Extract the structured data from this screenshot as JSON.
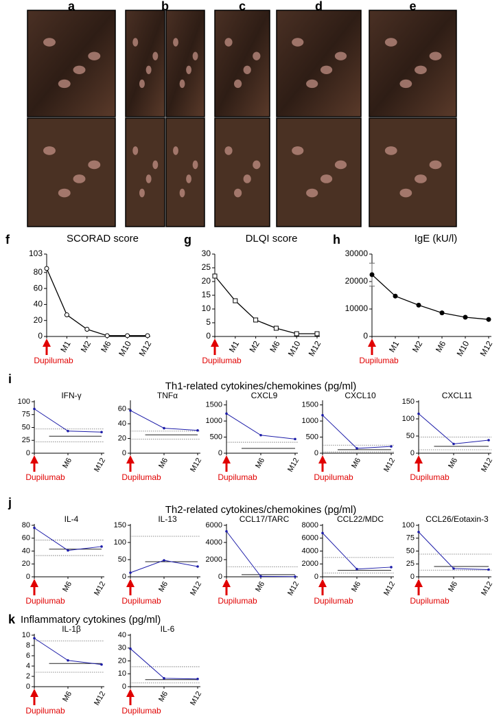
{
  "photo_panels": [
    "a",
    "b",
    "c",
    "d",
    "e"
  ],
  "groups": [
    {
      "label": "i",
      "title": "Th1-related cytokines/chemokines (pg/ml)"
    },
    {
      "label": "j",
      "title": "Th2-related cytokines/chemokines (pg/ml)"
    },
    {
      "label": "k",
      "title": "Inflammatory cytokines (pg/ml)"
    }
  ],
  "chart_data": [
    {
      "type": "line",
      "label": "f",
      "title": "SCORAD score",
      "categories": [
        null,
        "M1",
        "M2",
        "M6",
        "M10",
        "M12"
      ],
      "annotation": "Dupilumab",
      "ylim": [
        0,
        103
      ],
      "yticks": [
        0,
        20,
        40,
        60,
        80,
        103
      ],
      "series": [
        {
          "color": "#000000",
          "marker": "open-circle",
          "values": [
            85,
            27,
            9,
            1,
            1,
            1
          ]
        }
      ]
    },
    {
      "type": "line",
      "label": "g",
      "title": "DLQI score",
      "categories": [
        null,
        "M1",
        "M2",
        "M6",
        "M10",
        "M12"
      ],
      "annotation": "Dupilumab",
      "ylim": [
        0,
        30
      ],
      "yticks": [
        0,
        5,
        10,
        15,
        20,
        25,
        30
      ],
      "series": [
        {
          "color": "#000000",
          "marker": "open-square",
          "values": [
            22,
            13,
            6,
            3,
            1,
            1
          ]
        }
      ]
    },
    {
      "type": "line",
      "label": "h",
      "title": "IgE (kU/l)",
      "categories": [
        null,
        "M1",
        "M2",
        "M6",
        "M10",
        "M12"
      ],
      "annotation": "Dupilumab",
      "ylim": [
        0,
        30000
      ],
      "yticks": [
        0,
        10000,
        20000,
        30000
      ],
      "series": [
        {
          "color": "#000000",
          "marker": "dot",
          "values": [
            22500,
            14700,
            11400,
            8600,
            7000,
            6200
          ],
          "errors": [
            4200,
            null,
            null,
            null,
            null,
            null
          ]
        }
      ]
    },
    {
      "type": "line",
      "title": "IFN-γ",
      "categories": [
        null,
        "M6",
        "M12"
      ],
      "annotation": "Dupilumab",
      "ylim": [
        0,
        100
      ],
      "yticks": [
        0,
        25,
        50,
        75,
        100
      ],
      "series": [
        {
          "color": "#1c1ca8",
          "marker": "dot",
          "values": [
            86,
            43,
            41
          ]
        }
      ],
      "reference": {
        "mean": 33,
        "bounds": [
          47,
          22
        ]
      }
    },
    {
      "type": "line",
      "title": "TNFα",
      "categories": [
        null,
        "M6",
        "M12"
      ],
      "annotation": "Dupilumab",
      "ylim": [
        0,
        70
      ],
      "yticks": [
        0,
        20,
        40,
        60
      ],
      "series": [
        {
          "color": "#1c1ca8",
          "marker": "dot",
          "values": [
            58,
            34,
            31
          ]
        }
      ],
      "reference": {
        "mean": 25,
        "bounds": [
          30,
          19
        ]
      }
    },
    {
      "type": "line",
      "title": "CXCL9",
      "categories": [
        null,
        "M6",
        "M12"
      ],
      "annotation": "Dupilumab",
      "ylim": [
        0,
        1600
      ],
      "yticks": [
        0,
        500,
        1000,
        1500
      ],
      "series": [
        {
          "color": "#1c1ca8",
          "marker": "dot",
          "values": [
            1230,
            560,
            440
          ]
        }
      ],
      "reference": {
        "mean": 150,
        "bounds": [
          340
        ]
      }
    },
    {
      "type": "line",
      "title": "CXCL10",
      "categories": [
        null,
        "M6",
        "M12"
      ],
      "annotation": "Dupilumab",
      "ylim": [
        0,
        1600
      ],
      "yticks": [
        0,
        500,
        1000,
        1500
      ],
      "series": [
        {
          "color": "#1c1ca8",
          "marker": "dot",
          "values": [
            1180,
            150,
            210
          ]
        }
      ],
      "reference": {
        "mean": 110,
        "bounds": [
          250,
          40
        ]
      }
    },
    {
      "type": "line",
      "title": "CXCL11",
      "categories": [
        null,
        "M6",
        "M12"
      ],
      "annotation": "Dupilumab",
      "ylim": [
        0,
        150
      ],
      "yticks": [
        0,
        50,
        100,
        150
      ],
      "series": [
        {
          "color": "#1c1ca8",
          "marker": "dot",
          "values": [
            115,
            27,
            38
          ]
        }
      ],
      "reference": {
        "mean": 20,
        "bounds": [
          47,
          10
        ]
      }
    },
    {
      "type": "line",
      "title": "IL-4",
      "categories": [
        null,
        "M6",
        "M12"
      ],
      "annotation": "Dupilumab",
      "ylim": [
        0,
        80
      ],
      "yticks": [
        0,
        20,
        40,
        60,
        80
      ],
      "series": [
        {
          "color": "#1c1ca8",
          "marker": "dot",
          "values": [
            76,
            41,
            47
          ]
        }
      ],
      "reference": {
        "mean": 43,
        "bounds": [
          57,
          33
        ]
      }
    },
    {
      "type": "line",
      "title": "IL-13",
      "categories": [
        null,
        "M6",
        "M12"
      ],
      "annotation": "Dupilumab",
      "ylim": [
        0,
        150
      ],
      "yticks": [
        0,
        50,
        100,
        150
      ],
      "series": [
        {
          "color": "#1c1ca8",
          "marker": "dot",
          "values": [
            12,
            48,
            30
          ]
        }
      ],
      "reference": {
        "mean": 44,
        "bounds": [
          118
        ]
      }
    },
    {
      "type": "line",
      "title": "CCL17/TARC",
      "categories": [
        null,
        "M6",
        "M12"
      ],
      "annotation": "Dupilumab",
      "ylim": [
        0,
        6000
      ],
      "yticks": [
        0,
        2000,
        4000,
        6000
      ],
      "series": [
        {
          "color": "#1c1ca8",
          "marker": "dot",
          "values": [
            5300,
            50,
            20
          ]
        }
      ],
      "reference": {
        "mean": 250,
        "bounds": [
          1150
        ]
      }
    },
    {
      "type": "line",
      "title": "CCL22/MDC",
      "categories": [
        null,
        "M6",
        "M12"
      ],
      "annotation": "Dupilumab",
      "ylim": [
        0,
        8000
      ],
      "yticks": [
        0,
        2000,
        4000,
        6000,
        8000
      ],
      "series": [
        {
          "color": "#1c1ca8",
          "marker": "dot",
          "values": [
            6800,
            1200,
            1500
          ]
        }
      ],
      "reference": {
        "mean": 1000,
        "bounds": [
          3000,
          600
        ]
      }
    },
    {
      "type": "line",
      "title": "CCL26/Eotaxin-3",
      "categories": [
        null,
        "M6",
        "M12"
      ],
      "annotation": "Dupilumab",
      "ylim": [
        0,
        100
      ],
      "yticks": [
        0,
        25,
        50,
        75,
        100
      ],
      "series": [
        {
          "color": "#1c1ca8",
          "marker": "dot",
          "values": [
            87,
            16,
            14
          ]
        }
      ],
      "reference": {
        "mean": 20,
        "bounds": [
          44,
          13
        ]
      }
    },
    {
      "type": "line",
      "title": "IL-1β",
      "categories": [
        null,
        "M6",
        "M12"
      ],
      "annotation": "Dupilumab",
      "ylim": [
        0,
        10
      ],
      "yticks": [
        0,
        2,
        4,
        6,
        8,
        10
      ],
      "series": [
        {
          "color": "#1c1ca8",
          "marker": "dot",
          "values": [
            9.4,
            5.1,
            4.3
          ]
        }
      ],
      "reference": {
        "mean": 4.5,
        "bounds": [
          8.9,
          2.8
        ]
      }
    },
    {
      "type": "line",
      "title": "IL-6",
      "categories": [
        null,
        "M6",
        "M12"
      ],
      "annotation": "Dupilumab",
      "ylim": [
        0,
        40
      ],
      "yticks": [
        0,
        10,
        20,
        30,
        40
      ],
      "series": [
        {
          "color": "#1c1ca8",
          "marker": "dot",
          "values": [
            29.5,
            6.5,
            6
          ]
        }
      ],
      "reference": {
        "mean": 5.5,
        "bounds": [
          15.5,
          3
        ]
      }
    }
  ]
}
